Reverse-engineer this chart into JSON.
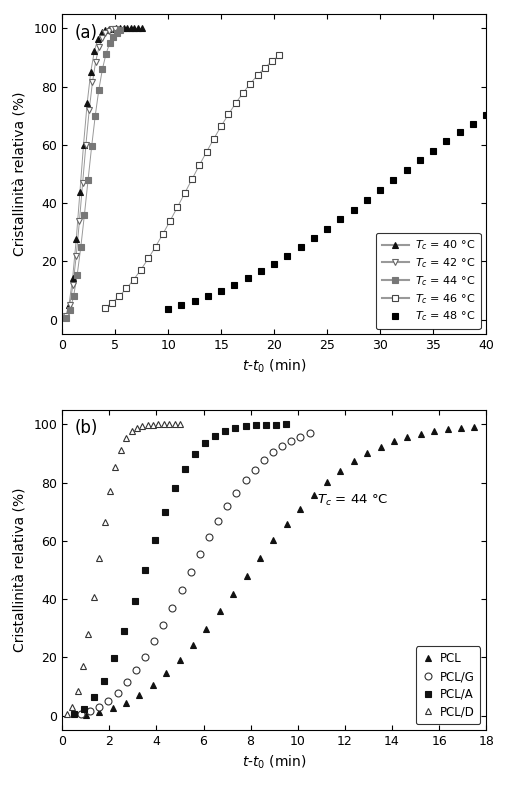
{
  "panel_a": {
    "title": "(a)",
    "xlabel": "$t$-$t_0$ (min)",
    "ylabel": "Cristallinità relativa (%)",
    "xlim": [
      0,
      40
    ],
    "ylim": [
      -5,
      105
    ],
    "xticks": [
      0,
      5,
      10,
      15,
      20,
      25,
      30,
      35,
      40
    ],
    "yticks": [
      0,
      20,
      40,
      60,
      80,
      100
    ],
    "series": [
      {
        "label": "$T_c$ = 40 °C",
        "marker": "^",
        "filled": true,
        "color": "#111111",
        "t_half": 1.8,
        "avrami_n": 2.5,
        "t_start": 0.3,
        "t_end": 7.5,
        "n_points": 22,
        "has_line": true,
        "line_color": "#999999"
      },
      {
        "label": "$T_c$ = 42 °C",
        "marker": "v",
        "filled": false,
        "color": "#666666",
        "t_half": 2.0,
        "avrami_n": 2.5,
        "t_start": 0.4,
        "t_end": 5.0,
        "n_points": 16,
        "has_line": true,
        "line_color": "#999999"
      },
      {
        "label": "$T_c$ = 44 °C",
        "marker": "s",
        "filled": true,
        "color": "#777777",
        "t_half": 2.5,
        "avrami_n": 2.5,
        "t_start": 0.4,
        "t_end": 5.5,
        "n_points": 16,
        "has_line": true,
        "line_color": "#999999"
      },
      {
        "label": "$T_c$ = 46 °C",
        "marker": "s",
        "filled": false,
        "color": "#444444",
        "t_half": 12.5,
        "avrami_n": 2.5,
        "t_start": 4.0,
        "t_end": 20.5,
        "n_points": 25,
        "has_line": true,
        "line_color": "#999999"
      },
      {
        "label": "$T_c$ = 48 °C",
        "marker": "s",
        "filled": true,
        "color": "#000000",
        "t_half": 32.0,
        "avrami_n": 2.5,
        "t_start": 10.0,
        "t_end": 40.0,
        "n_points": 25,
        "has_line": false,
        "line_color": "#999999"
      }
    ]
  },
  "panel_b": {
    "title": "(b)",
    "xlabel": "$t$-$t_0$ (min)",
    "ylabel": "Cristallinità relativa (%)",
    "xlim": [
      0,
      18
    ],
    "ylim": [
      -5,
      105
    ],
    "xticks": [
      0,
      2,
      4,
      6,
      8,
      10,
      12,
      14,
      16,
      18
    ],
    "yticks": [
      0,
      20,
      40,
      60,
      80,
      100
    ],
    "annotation": "$T_c$ = 44 °C",
    "series": [
      {
        "label": "PCL",
        "marker": "^",
        "filled": true,
        "color": "#111111",
        "t_half": 8.0,
        "avrami_n": 2.5,
        "t_start": 1.0,
        "t_end": 17.5,
        "n_points": 30
      },
      {
        "label": "PCL/G",
        "marker": "o",
        "filled": false,
        "color": "#333333",
        "t_half": 5.5,
        "avrami_n": 2.5,
        "t_start": 0.8,
        "t_end": 10.5,
        "n_points": 26
      },
      {
        "label": "PCL/A",
        "marker": "s",
        "filled": true,
        "color": "#111111",
        "t_half": 3.5,
        "avrami_n": 2.5,
        "t_start": 0.5,
        "t_end": 9.5,
        "n_points": 22
      },
      {
        "label": "PCL/D",
        "marker": "^",
        "filled": false,
        "color": "#333333",
        "t_half": 1.5,
        "avrami_n": 2.5,
        "t_start": 0.2,
        "t_end": 5.0,
        "n_points": 22
      }
    ]
  }
}
